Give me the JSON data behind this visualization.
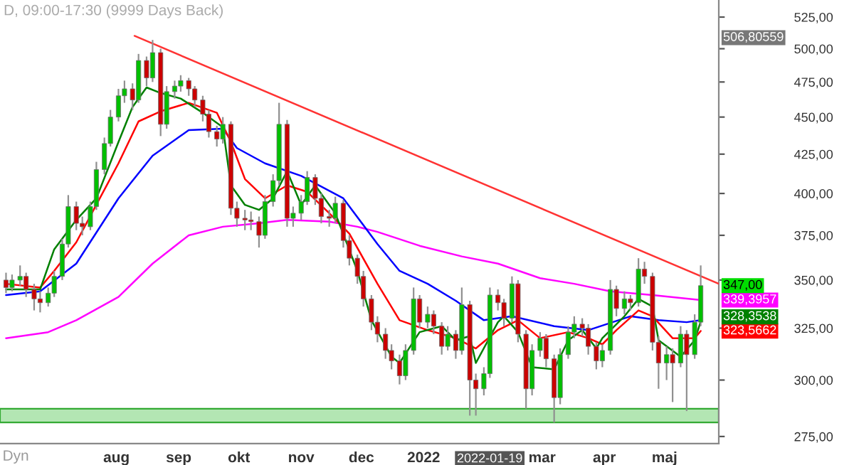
{
  "chart_data": {
    "type": "candlestick",
    "title": "D, 09:00-17:30 (9999 Days Back)",
    "x": [
      "2021-06-07",
      "2021-06-10",
      "2021-06-14",
      "2021-06-17",
      "2021-06-21",
      "2021-06-24",
      "2021-06-28",
      "2021-07-01",
      "2021-07-05",
      "2021-07-08",
      "2021-07-12",
      "2021-07-15",
      "2021-07-19",
      "2021-07-22",
      "2021-07-26",
      "2021-07-29",
      "2021-08-02",
      "2021-08-05",
      "2021-08-09",
      "2021-08-12",
      "2021-08-16",
      "2021-08-19",
      "2021-08-23",
      "2021-08-26",
      "2021-08-30",
      "2021-09-02",
      "2021-09-06",
      "2021-09-09",
      "2021-09-13",
      "2021-09-16",
      "2021-09-20",
      "2021-09-23",
      "2021-09-27",
      "2021-09-30",
      "2021-10-04",
      "2021-10-07",
      "2021-10-11",
      "2021-10-14",
      "2021-10-18",
      "2021-10-21",
      "2021-10-25",
      "2021-10-28",
      "2021-11-01",
      "2021-11-04",
      "2021-11-08",
      "2021-11-11",
      "2021-11-15",
      "2021-11-18",
      "2021-11-22",
      "2021-11-25",
      "2021-11-29",
      "2021-12-02",
      "2021-12-06",
      "2021-12-09",
      "2021-12-13",
      "2021-12-16",
      "2021-12-20",
      "2021-12-23",
      "2021-12-27",
      "2021-12-30",
      "2022-01-03",
      "2022-01-06",
      "2022-01-10",
      "2022-01-13",
      "2022-01-17",
      "2022-01-20",
      "2022-01-24",
      "2022-01-27",
      "2022-01-31",
      "2022-02-03",
      "2022-02-07",
      "2022-02-10",
      "2022-02-14",
      "2022-02-17",
      "2022-02-21",
      "2022-02-24",
      "2022-02-28",
      "2022-03-03",
      "2022-03-07",
      "2022-03-10",
      "2022-03-14",
      "2022-03-17",
      "2022-03-21",
      "2022-03-24",
      "2022-03-28",
      "2022-03-31",
      "2022-04-04",
      "2022-04-07",
      "2022-04-11",
      "2022-04-14",
      "2022-04-18",
      "2022-04-21",
      "2022-04-25",
      "2022-04-28",
      "2022-05-02",
      "2022-05-05",
      "2022-05-09",
      "2022-05-12",
      "2022-05-16",
      "2022-05-19"
    ],
    "ohlc": [
      [
        350,
        354,
        343,
        346
      ],
      [
        346,
        353,
        344,
        350
      ],
      [
        350,
        358,
        347,
        352
      ],
      [
        352,
        354,
        341,
        345
      ],
      [
        345,
        348,
        334,
        340
      ],
      [
        340,
        344,
        333,
        338
      ],
      [
        338,
        346,
        336,
        343
      ],
      [
        343,
        355,
        341,
        352
      ],
      [
        352,
        373,
        350,
        370
      ],
      [
        370,
        399,
        368,
        392
      ],
      [
        392,
        395,
        378,
        382
      ],
      [
        382,
        386,
        375,
        380
      ],
      [
        380,
        395,
        378,
        392
      ],
      [
        392,
        420,
        390,
        415
      ],
      [
        415,
        436,
        412,
        432
      ],
      [
        432,
        455,
        430,
        450
      ],
      [
        450,
        470,
        447,
        465
      ],
      [
        465,
        476,
        460,
        470
      ],
      [
        470,
        474,
        455,
        462
      ],
      [
        462,
        496,
        460,
        491
      ],
      [
        491,
        494,
        472,
        478
      ],
      [
        478,
        506.80559,
        475,
        497
      ],
      [
        497,
        500,
        437,
        445
      ],
      [
        445,
        472,
        442,
        468
      ],
      [
        468,
        476,
        463,
        472
      ],
      [
        472,
        480,
        468,
        476
      ],
      [
        476,
        478,
        465,
        470
      ],
      [
        470,
        472,
        457,
        462
      ],
      [
        462,
        465,
        447,
        452
      ],
      [
        452,
        455,
        436,
        440
      ],
      [
        440,
        444,
        430,
        435
      ],
      [
        435,
        450,
        432,
        445
      ],
      [
        445,
        447,
        387,
        391
      ],
      [
        391,
        395,
        380,
        385
      ],
      [
        385,
        390,
        378,
        384
      ],
      [
        384,
        389,
        378,
        383
      ],
      [
        383,
        386,
        368,
        375
      ],
      [
        375,
        399,
        373,
        395
      ],
      [
        395,
        412,
        392,
        408
      ],
      [
        408,
        460,
        405,
        445
      ],
      [
        445,
        448,
        380,
        385
      ],
      [
        385,
        392,
        380,
        388
      ],
      [
        388,
        399,
        384,
        395
      ],
      [
        395,
        414,
        393,
        410
      ],
      [
        410,
        412,
        393,
        397
      ],
      [
        397,
        400,
        382,
        386
      ],
      [
        386,
        390,
        380,
        385
      ],
      [
        385,
        398,
        382,
        394
      ],
      [
        394,
        396,
        368,
        372
      ],
      [
        372,
        375,
        358,
        362
      ],
      [
        362,
        364,
        348,
        352
      ],
      [
        352,
        355,
        336,
        340
      ],
      [
        340,
        342,
        324,
        328
      ],
      [
        328,
        331,
        318,
        322
      ],
      [
        322,
        325,
        310,
        314
      ],
      [
        314,
        317,
        305,
        309
      ],
      [
        309,
        312,
        298,
        302
      ],
      [
        302,
        317,
        300,
        314
      ],
      [
        314,
        346,
        312,
        340
      ],
      [
        340,
        342,
        325,
        328
      ],
      [
        328,
        336,
        325,
        332
      ],
      [
        332,
        334,
        322,
        326
      ],
      [
        326,
        328,
        312,
        316
      ],
      [
        316,
        326,
        314,
        322
      ],
      [
        322,
        324,
        310,
        314
      ],
      [
        314,
        346,
        312,
        337
      ],
      [
        337,
        339,
        284,
        300
      ],
      [
        300,
        303,
        284,
        296
      ],
      [
        296,
        306,
        293,
        303
      ],
      [
        303,
        346,
        301,
        342
      ],
      [
        342,
        345,
        334,
        338
      ],
      [
        338,
        340,
        326,
        330
      ],
      [
        330,
        352,
        328,
        348
      ],
      [
        348,
        350,
        318,
        322
      ],
      [
        322,
        324,
        287,
        296
      ],
      [
        296,
        317,
        293,
        314
      ],
      [
        314,
        323,
        311,
        320
      ],
      [
        320,
        322,
        306,
        310
      ],
      [
        310,
        312,
        281,
        292
      ],
      [
        292,
        315,
        289,
        312
      ],
      [
        312,
        326,
        310,
        323
      ],
      [
        323,
        331,
        320,
        327
      ],
      [
        327,
        330,
        321,
        325
      ],
      [
        325,
        327,
        312,
        316
      ],
      [
        316,
        318,
        305,
        309
      ],
      [
        309,
        317,
        306,
        314
      ],
      [
        314,
        350,
        312,
        345
      ],
      [
        345,
        347,
        331,
        335
      ],
      [
        335,
        344,
        332,
        340
      ],
      [
        340,
        342,
        334,
        338
      ],
      [
        338,
        362,
        336,
        356
      ],
      [
        356,
        360,
        348,
        352
      ],
      [
        352,
        354,
        314,
        318
      ],
      [
        318,
        321,
        296,
        308
      ],
      [
        308,
        316,
        300,
        312
      ],
      [
        312,
        315,
        290,
        308
      ],
      [
        308,
        326,
        306,
        322
      ],
      [
        322,
        324,
        286,
        312
      ],
      [
        312,
        332,
        310,
        328
      ],
      [
        328,
        358,
        326,
        347
      ]
    ],
    "series": [
      {
        "type": "line",
        "color": "#ff00ff",
        "x": [
          "2021-06-07",
          "2021-06-28",
          "2021-07-12",
          "2021-08-02",
          "2021-08-19",
          "2021-09-06",
          "2021-09-23",
          "2021-10-11",
          "2021-10-25",
          "2021-11-15",
          "2021-11-29",
          "2021-12-09",
          "2021-12-30",
          "2022-01-20",
          "2022-02-07",
          "2022-02-28",
          "2022-03-17",
          "2022-04-04",
          "2022-04-25",
          "2022-05-19"
        ],
        "values": [
          320,
          323,
          329,
          341,
          359,
          375,
          380,
          382,
          384,
          383,
          380,
          377,
          369,
          363,
          359,
          351,
          348,
          344,
          342,
          339.3957
        ]
      },
      {
        "type": "line",
        "color": "#0000ff",
        "x": [
          "2021-06-07",
          "2021-06-24",
          "2021-07-12",
          "2021-08-02",
          "2021-08-19",
          "2021-09-06",
          "2021-09-23",
          "2021-09-30",
          "2021-10-14",
          "2021-11-01",
          "2021-11-22",
          "2021-12-09",
          "2021-12-20",
          "2022-01-03",
          "2022-01-17",
          "2022-01-31",
          "2022-02-14",
          "2022-03-07",
          "2022-03-24",
          "2022-04-14",
          "2022-04-28",
          "2022-05-12",
          "2022-05-19"
        ],
        "values": [
          342,
          344,
          359,
          397,
          424,
          441,
          442,
          429,
          419,
          411,
          397,
          370,
          355,
          348,
          339,
          329,
          331,
          326,
          324,
          331,
          329,
          328,
          329
        ]
      },
      {
        "type": "line",
        "color": "#ff0000",
        "x": [
          "2021-06-07",
          "2021-06-24",
          "2021-07-01",
          "2021-07-12",
          "2021-08-02",
          "2021-08-12",
          "2021-08-23",
          "2021-09-06",
          "2021-09-20",
          "2021-09-27",
          "2021-10-04",
          "2021-10-14",
          "2021-10-25",
          "2021-11-04",
          "2021-11-15",
          "2021-11-25",
          "2021-12-09",
          "2021-12-20",
          "2022-01-03",
          "2022-01-17",
          "2022-01-27",
          "2022-02-07",
          "2022-02-17",
          "2022-02-28",
          "2022-03-14",
          "2022-03-24",
          "2022-03-31",
          "2022-04-07",
          "2022-04-18",
          "2022-04-25",
          "2022-05-05",
          "2022-05-16",
          "2022-05-19"
        ],
        "values": [
          348,
          346,
          355,
          371,
          419,
          447,
          454,
          460,
          453,
          433,
          409,
          397,
          405,
          401,
          388,
          376,
          348,
          329,
          324,
          320,
          315,
          324,
          329,
          320,
          323,
          320,
          317,
          324,
          334,
          331,
          320,
          320,
          323.5662
        ]
      },
      {
        "type": "line",
        "color": "#008000",
        "x": [
          "2021-06-07",
          "2021-06-24",
          "2021-07-01",
          "2021-07-12",
          "2021-07-22",
          "2021-08-02",
          "2021-08-09",
          "2021-08-16",
          "2021-08-23",
          "2021-09-02",
          "2021-09-13",
          "2021-09-23",
          "2021-09-27",
          "2021-10-04",
          "2021-10-11",
          "2021-10-18",
          "2021-10-25",
          "2021-11-01",
          "2021-11-08",
          "2021-11-15",
          "2021-11-18",
          "2021-11-29",
          "2021-12-06",
          "2021-12-16",
          "2021-12-20",
          "2021-12-30",
          "2022-01-10",
          "2022-01-17",
          "2022-01-24",
          "2022-01-27",
          "2022-02-07",
          "2022-02-10",
          "2022-02-17",
          "2022-02-24",
          "2022-03-07",
          "2022-03-14",
          "2022-03-21",
          "2022-03-28",
          "2022-03-31",
          "2022-04-11",
          "2022-04-18",
          "2022-04-25",
          "2022-04-28",
          "2022-05-09",
          "2022-05-16",
          "2022-05-19"
        ],
        "values": [
          345,
          345,
          367,
          384,
          397,
          433,
          457,
          471,
          467,
          463,
          453,
          443,
          405,
          393,
          390,
          397,
          414,
          393,
          405,
          393,
          388,
          355,
          329,
          311,
          308,
          323,
          326,
          319,
          321,
          308,
          328,
          331,
          323,
          306,
          305,
          319,
          324,
          315,
          320,
          331,
          340,
          336,
          319,
          311,
          319,
          328.3538
        ]
      },
      {
        "type": "line",
        "color": "#ff3333",
        "x": [
          "2021-08-10",
          "2022-05-28"
        ],
        "values": [
          510,
          348
        ]
      }
    ],
    "bands": [
      {
        "axis": "y",
        "from": 281,
        "to": 287,
        "color": "#b3e6b3"
      }
    ],
    "annotations": [
      {
        "text": "347,00",
        "x": "2022-05-19",
        "y": 347
      },
      {
        "text": "339,3957",
        "x": "2022-05-19",
        "y": 339.3957
      },
      {
        "text": "328,3538",
        "x": "2022-05-19",
        "y": 328.3538
      },
      {
        "text": "323,5662",
        "x": "2022-05-19",
        "y": 323.5662
      },
      "Dyn",
      "2022-01-19",
      "506,80559"
    ],
    "log": "y",
    "ylim": [
      272,
      539
    ],
    "yticks": [
      {
        "value": 275,
        "label": "275,00"
      },
      {
        "value": 300,
        "label": "300,00"
      },
      {
        "value": 325,
        "label": "325,00"
      },
      {
        "value": 350,
        "label": "350,00"
      },
      {
        "value": 375,
        "label": "375,00"
      },
      {
        "value": 400,
        "label": "400,00"
      },
      {
        "value": 425,
        "label": "425,00"
      },
      {
        "value": 450,
        "label": "450,00"
      },
      {
        "value": 475,
        "label": "475,00"
      },
      {
        "value": 500,
        "label": "500,00"
      },
      {
        "value": 525,
        "label": "525,00"
      }
    ],
    "xlim": [
      "2021-06-04",
      "2022-05-28"
    ],
    "xticks": [
      {
        "value": "2021-08-01",
        "label": "aug"
      },
      {
        "value": "2021-09-01",
        "label": "sep"
      },
      {
        "value": "2021-10-01",
        "label": "okt"
      },
      {
        "value": "2021-11-01",
        "label": "nov"
      },
      {
        "value": "2021-12-01",
        "label": "dec"
      },
      {
        "value": "2022-01-01",
        "label": "2022"
      },
      {
        "value": "2022-03-01",
        "label": "mar"
      },
      {
        "value": "2022-04-01",
        "label": "apr"
      },
      {
        "value": "2022-05-01",
        "label": "maj"
      }
    ],
    "grid": false
  }
}
